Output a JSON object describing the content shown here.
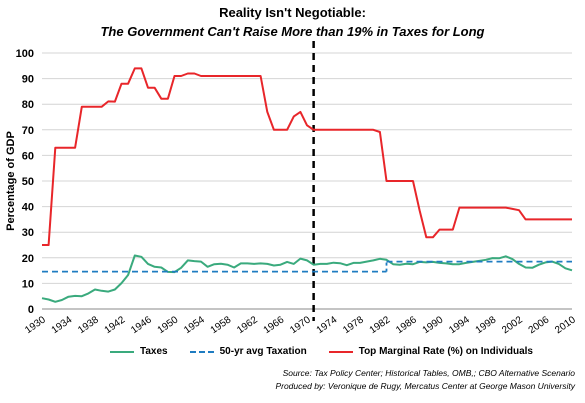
{
  "title": "Reality Isn't Negotiable:",
  "subtitle": "The Government Can't Raise More than 19% in Taxes for Long",
  "source_line1": "Source: Tax Policy Center; Historical Tables, OMB,; CBO Alternative Scenario",
  "source_line2": "Produced by: Veronique de Rugy, Mercatus Center at George Mason University",
  "chart_data": {
    "type": "line",
    "ylabel": "Percentage of GDP",
    "xlim": [
      1930,
      2010
    ],
    "ylim": [
      0,
      100
    ],
    "yticks": [
      0,
      10,
      20,
      30,
      40,
      50,
      60,
      70,
      80,
      90,
      100
    ],
    "xticks": [
      1930,
      1934,
      1938,
      1942,
      1946,
      1950,
      1954,
      1958,
      1962,
      1966,
      1970,
      1974,
      1978,
      1982,
      1986,
      1990,
      1994,
      1998,
      2002,
      2006,
      2010
    ],
    "grid": "horizontal",
    "vline": {
      "x": 1971,
      "style": "dashed",
      "color": "#000000"
    },
    "legend_position": "bottom",
    "series": [
      {
        "name": "Taxes",
        "color": "#3aaa7d",
        "style": "solid",
        "x": [
          1930,
          1931,
          1932,
          1933,
          1934,
          1935,
          1936,
          1937,
          1938,
          1939,
          1940,
          1941,
          1942,
          1943,
          1944,
          1945,
          1946,
          1947,
          1948,
          1949,
          1950,
          1951,
          1952,
          1953,
          1954,
          1955,
          1956,
          1957,
          1958,
          1959,
          1960,
          1961,
          1962,
          1963,
          1964,
          1965,
          1966,
          1967,
          1968,
          1969,
          1970,
          1971,
          1972,
          1973,
          1974,
          1975,
          1976,
          1977,
          1978,
          1979,
          1980,
          1981,
          1982,
          1983,
          1984,
          1985,
          1986,
          1987,
          1988,
          1989,
          1990,
          1991,
          1992,
          1993,
          1994,
          1995,
          1996,
          1997,
          1998,
          1999,
          2000,
          2001,
          2002,
          2003,
          2004,
          2005,
          2006,
          2007,
          2008,
          2009,
          2010
        ],
        "values": [
          4.2,
          3.7,
          2.8,
          3.5,
          4.8,
          5.1,
          5.0,
          6.1,
          7.6,
          7.1,
          6.8,
          7.6,
          10.1,
          13.3,
          20.9,
          20.4,
          17.6,
          16.5,
          16.2,
          14.5,
          14.4,
          16.1,
          19.0,
          18.7,
          18.5,
          16.5,
          17.5,
          17.7,
          17.3,
          16.2,
          17.8,
          17.8,
          17.6,
          17.8,
          17.6,
          17.0,
          17.3,
          18.4,
          17.6,
          19.7,
          19.0,
          17.3,
          17.6,
          17.6,
          18.1,
          17.9,
          17.1,
          18.0,
          18.0,
          18.5,
          19.0,
          19.6,
          19.2,
          17.5,
          17.3,
          17.7,
          17.5,
          18.4,
          18.2,
          18.4,
          18.0,
          17.8,
          17.5,
          17.5,
          18.0,
          18.4,
          18.8,
          19.2,
          19.9,
          19.8,
          20.6,
          19.5,
          17.6,
          16.2,
          16.1,
          17.3,
          18.2,
          18.5,
          17.6,
          15.9,
          15.1
        ]
      },
      {
        "name": "50-yr avg Taxation",
        "color": "#1f7cc1",
        "style": "dashed",
        "segments": [
          {
            "x": [
              1930,
              1982
            ],
            "value": 14.6
          },
          {
            "x": [
              1982,
              2010
            ],
            "value": 18.5
          }
        ]
      },
      {
        "name": "Top Marginal Rate (%) on Individuals",
        "color": "#e8262a",
        "style": "solid",
        "x": [
          1930,
          1931,
          1932,
          1933,
          1934,
          1935,
          1936,
          1937,
          1938,
          1939,
          1940,
          1941,
          1942,
          1943,
          1944,
          1945,
          1946,
          1947,
          1948,
          1949,
          1950,
          1951,
          1952,
          1953,
          1954,
          1955,
          1956,
          1957,
          1958,
          1959,
          1960,
          1961,
          1962,
          1963,
          1964,
          1965,
          1966,
          1967,
          1968,
          1969,
          1970,
          1971,
          1972,
          1973,
          1974,
          1975,
          1976,
          1977,
          1978,
          1979,
          1980,
          1981,
          1982,
          1983,
          1984,
          1985,
          1986,
          1987,
          1988,
          1989,
          1990,
          1991,
          1992,
          1993,
          1994,
          1995,
          1996,
          1997,
          1998,
          1999,
          2000,
          2001,
          2002,
          2003,
          2004,
          2005,
          2006,
          2007,
          2008,
          2009,
          2010
        ],
        "values": [
          25,
          25,
          63,
          63,
          63,
          63,
          79,
          79,
          79,
          79,
          81.1,
          81,
          88,
          88,
          94,
          94,
          86.45,
          86.45,
          82.13,
          82.13,
          91,
          91,
          92,
          92,
          91,
          91,
          91,
          91,
          91,
          91,
          91,
          91,
          91,
          91,
          77,
          70,
          70,
          70,
          75.25,
          77,
          71.75,
          70,
          70,
          70,
          70,
          70,
          70,
          70,
          70,
          70,
          70,
          69.13,
          50,
          50,
          50,
          50,
          50,
          38.5,
          28,
          28,
          31,
          31,
          31,
          39.6,
          39.6,
          39.6,
          39.6,
          39.6,
          39.6,
          39.6,
          39.6,
          39.1,
          38.6,
          35,
          35,
          35,
          35,
          35,
          35,
          35,
          35
        ]
      }
    ]
  }
}
